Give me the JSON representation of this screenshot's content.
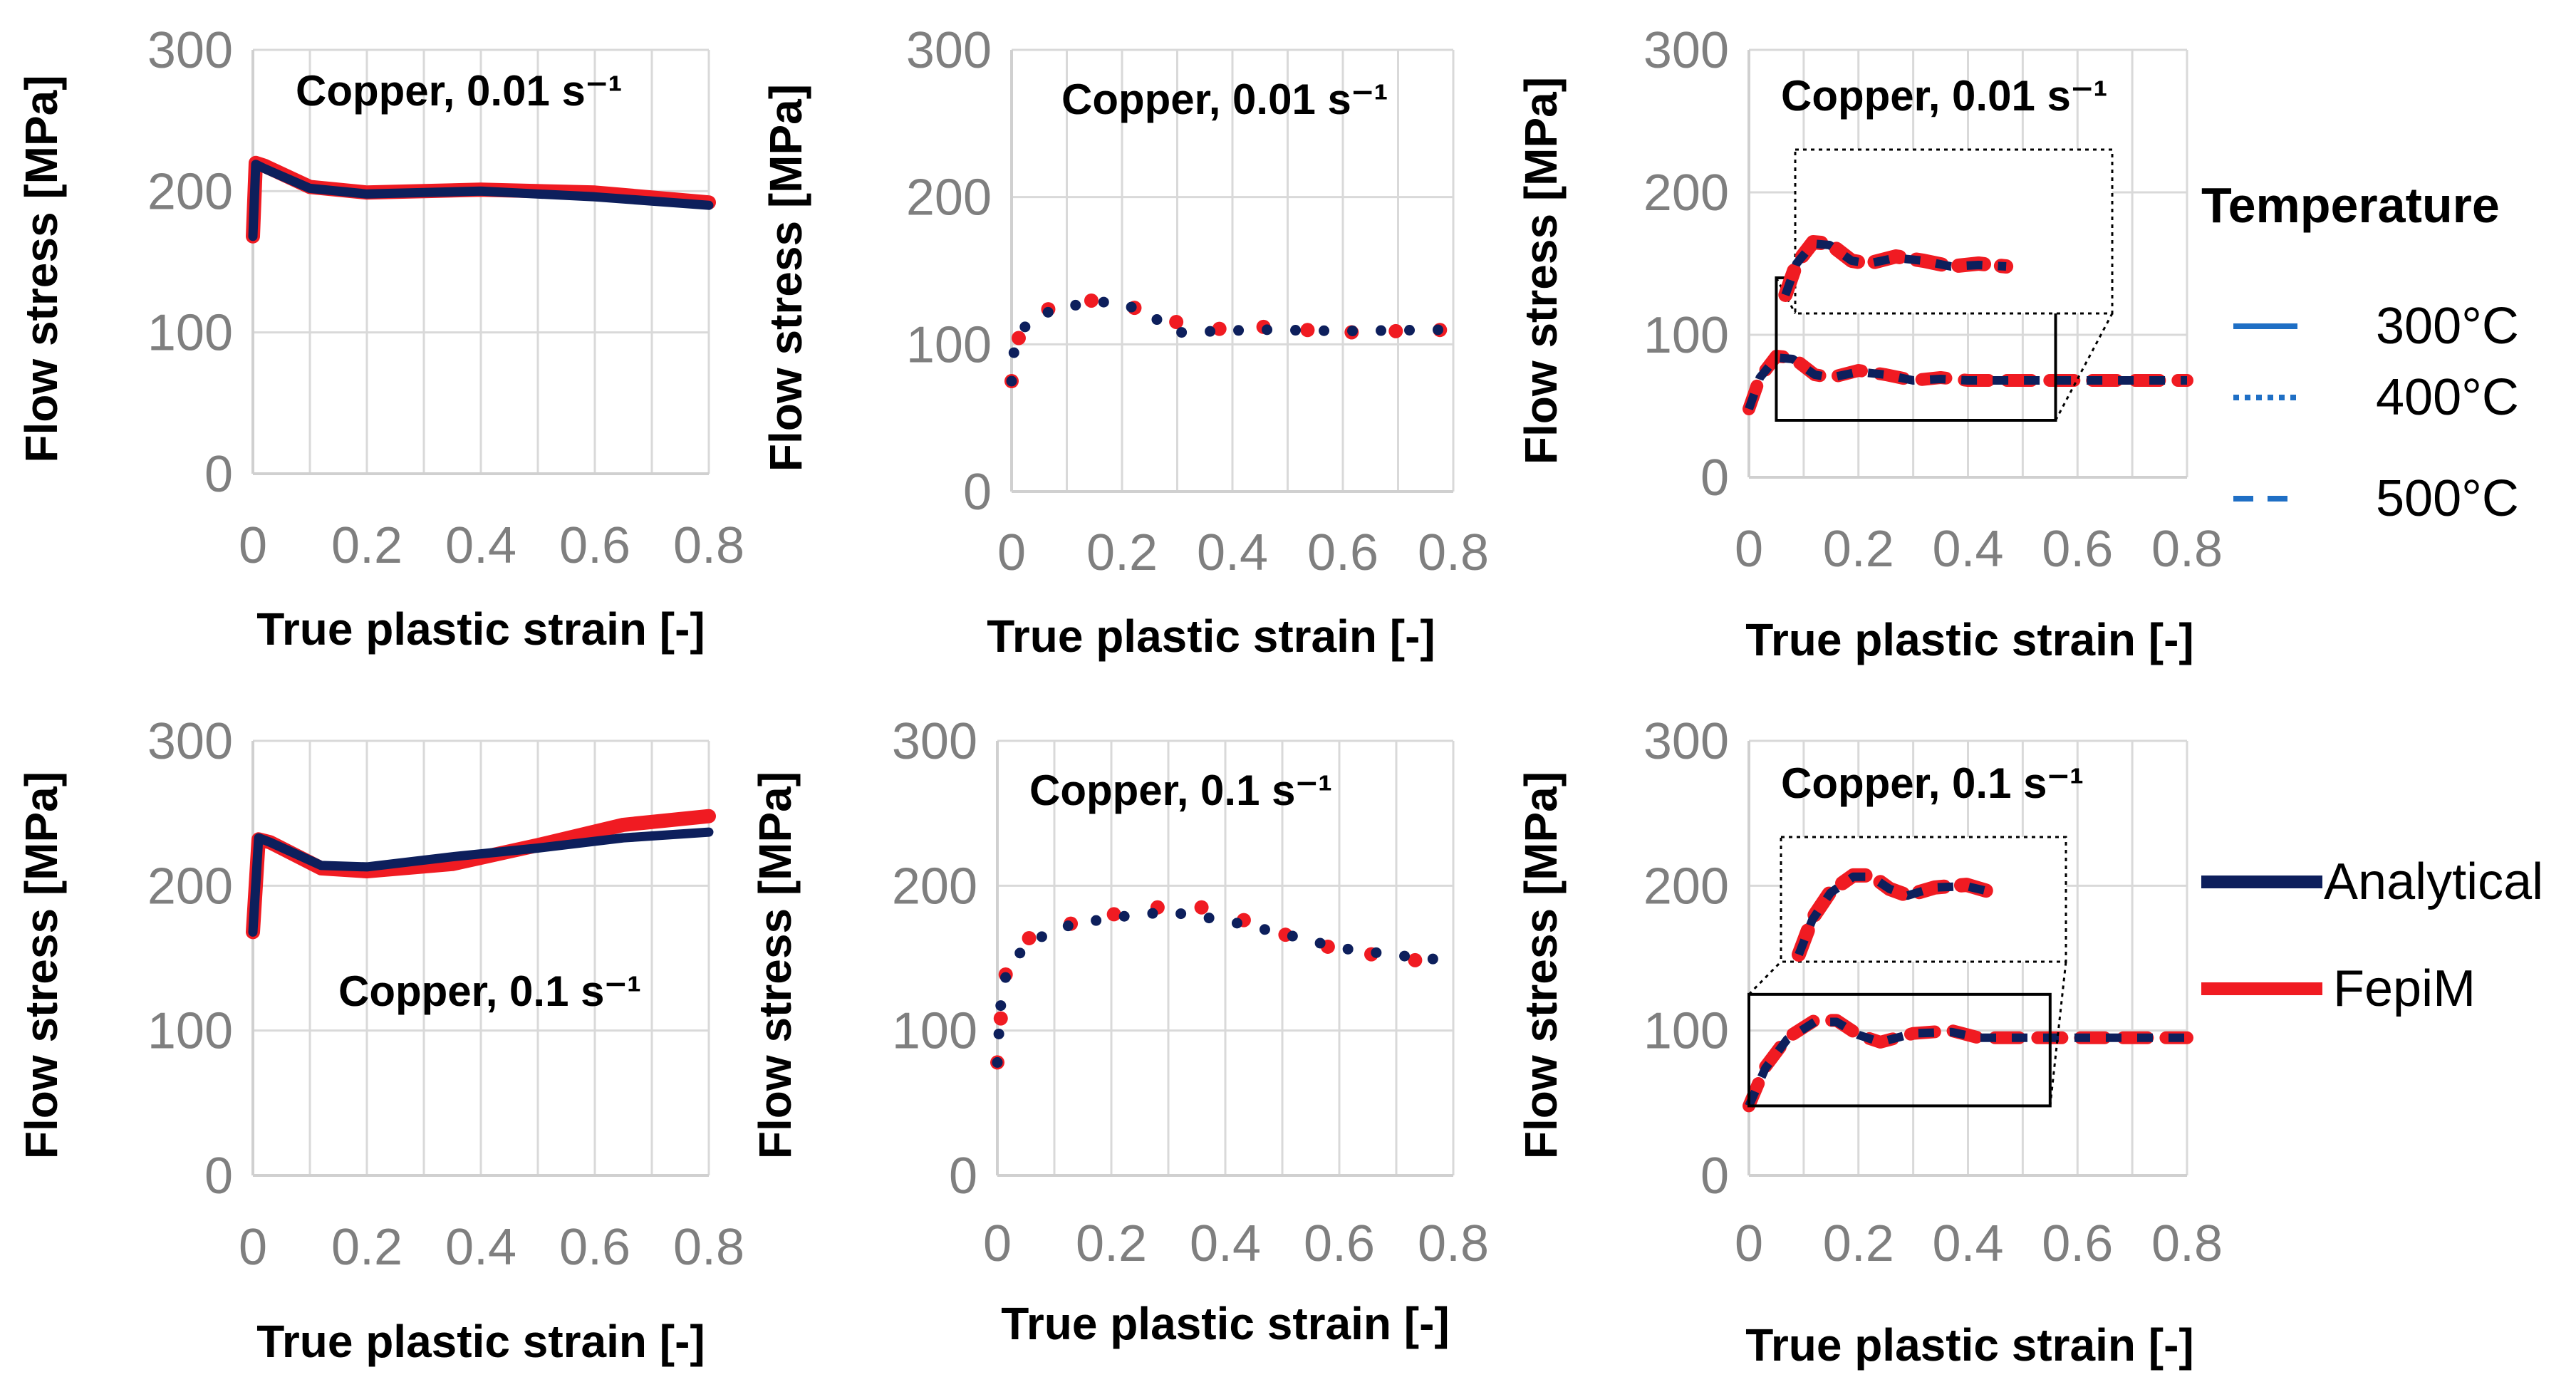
{
  "chart_data": [
    {
      "type": "line",
      "title": "Copper, 0.01 s⁻¹",
      "xlabel": "True plastic strain [-]",
      "ylabel": "Flow stress [MPa]",
      "xlim": [
        0,
        0.8
      ],
      "ylim": [
        0,
        300
      ],
      "xticks": [
        "0",
        "0.2",
        "0.4",
        "0.6",
        "0.8"
      ],
      "yticks": [
        "0",
        "100",
        "200",
        "300"
      ],
      "temperature": "300°C",
      "series": [
        {
          "name": "FepiM",
          "x": [
            0,
            0.005,
            0.02,
            0.1,
            0.2,
            0.4,
            0.6,
            0.8
          ],
          "y": [
            168,
            220,
            218,
            203,
            199,
            201,
            199,
            192
          ]
        },
        {
          "name": "Analytical",
          "x": [
            0,
            0.005,
            0.02,
            0.1,
            0.2,
            0.4,
            0.6,
            0.8
          ],
          "y": [
            168,
            219,
            216,
            202,
            198,
            200,
            196,
            190
          ]
        }
      ]
    },
    {
      "type": "line",
      "title": "Copper, 0.01 s⁻¹",
      "xlabel": "True plastic strain [-]",
      "ylabel": "Flow stress [MPa]",
      "xlim": [
        0,
        0.8
      ],
      "ylim": [
        0,
        300
      ],
      "xticks": [
        "0",
        "0.2",
        "0.4",
        "0.6",
        "0.8"
      ],
      "yticks": [
        "0",
        "100",
        "200",
        "300"
      ],
      "temperature": "400°C",
      "series": [
        {
          "name": "FepiM",
          "x": [
            0,
            0.005,
            0.03,
            0.08,
            0.15,
            0.2,
            0.27,
            0.35,
            0.45,
            0.6,
            0.8
          ],
          "y": [
            75,
            98,
            118,
            126,
            130,
            128,
            118,
            110,
            112,
            108,
            110
          ]
        },
        {
          "name": "Analytical",
          "x": [
            0,
            0.005,
            0.03,
            0.08,
            0.15,
            0.2,
            0.25,
            0.3,
            0.45,
            0.6,
            0.8
          ],
          "y": [
            75,
            98,
            116,
            124,
            129,
            128,
            120,
            108,
            110,
            109,
            110
          ]
        }
      ]
    },
    {
      "type": "line",
      "title": "Copper, 0.01 s⁻¹",
      "xlabel": "True plastic strain [-]",
      "ylabel": "Flow stress [MPa]",
      "xlim": [
        0,
        0.8
      ],
      "ylim": [
        0,
        300
      ],
      "xticks": [
        "0",
        "0.2",
        "0.4",
        "0.6",
        "0.8"
      ],
      "yticks": [
        "0",
        "100",
        "200",
        "300"
      ],
      "temperature": "500°C",
      "inset_zoom": "top",
      "series": [
        {
          "name": "FepiM",
          "x": [
            0,
            0.02,
            0.05,
            0.08,
            0.12,
            0.15,
            0.2,
            0.25,
            0.3,
            0.35,
            0.4,
            0.8
          ],
          "y": [
            48,
            70,
            85,
            84,
            72,
            70,
            75,
            72,
            68,
            70,
            68,
            68
          ]
        },
        {
          "name": "Analytical",
          "x": [
            0,
            0.02,
            0.05,
            0.08,
            0.12,
            0.15,
            0.2,
            0.25,
            0.3,
            0.35,
            0.4,
            0.8
          ],
          "y": [
            48,
            70,
            84,
            83,
            72,
            70,
            74,
            72,
            68,
            69,
            68,
            68
          ]
        }
      ]
    },
    {
      "type": "line",
      "title": "Copper, 0.1 s⁻¹",
      "xlabel": "True plastic strain [-]",
      "ylabel": "Flow stress [MPa]",
      "xlim": [
        0,
        0.8
      ],
      "ylim": [
        0,
        300
      ],
      "xticks": [
        "0",
        "0.2",
        "0.4",
        "0.6",
        "0.8"
      ],
      "yticks": [
        "0",
        "100",
        "200",
        "300"
      ],
      "temperature": "300°C",
      "series": [
        {
          "name": "FepiM",
          "x": [
            0,
            0.01,
            0.03,
            0.12,
            0.2,
            0.35,
            0.5,
            0.65,
            0.8
          ],
          "y": [
            168,
            232,
            230,
            212,
            210,
            215,
            228,
            242,
            248
          ]
        },
        {
          "name": "Analytical",
          "x": [
            0,
            0.01,
            0.03,
            0.12,
            0.2,
            0.35,
            0.5,
            0.65,
            0.8
          ],
          "y": [
            168,
            233,
            230,
            214,
            213,
            220,
            226,
            233,
            237
          ]
        }
      ]
    },
    {
      "type": "line",
      "title": "Copper, 0.1 s⁻¹",
      "xlabel": "True plastic strain [-]",
      "ylabel": "Flow stress [MPa]",
      "xlim": [
        0,
        0.8
      ],
      "ylim": [
        0,
        300
      ],
      "xticks": [
        "0",
        "0.2",
        "0.4",
        "0.6",
        "0.8"
      ],
      "yticks": [
        "0",
        "100",
        "200",
        "300"
      ],
      "temperature": "400°C",
      "series": [
        {
          "name": "FepiM",
          "x": [
            0,
            0.005,
            0.015,
            0.05,
            0.12,
            0.2,
            0.28,
            0.35,
            0.42,
            0.55,
            0.65,
            0.8
          ],
          "y": [
            78,
            105,
            140,
            163,
            173,
            180,
            185,
            186,
            178,
            160,
            153,
            145
          ]
        },
        {
          "name": "Analytical",
          "x": [
            0,
            0.005,
            0.015,
            0.05,
            0.12,
            0.2,
            0.3,
            0.4,
            0.5,
            0.6,
            0.7,
            0.8
          ],
          "y": [
            78,
            115,
            138,
            160,
            172,
            178,
            182,
            176,
            167,
            157,
            152,
            148
          ]
        }
      ]
    },
    {
      "type": "line",
      "title": "Copper, 0.1 s⁻¹",
      "xlabel": "True plastic strain [-]",
      "ylabel": "Flow stress [MPa]",
      "xlim": [
        0,
        0.8
      ],
      "ylim": [
        0,
        300
      ],
      "xticks": [
        "0",
        "0.2",
        "0.4",
        "0.6",
        "0.8"
      ],
      "yticks": [
        "0",
        "100",
        "200",
        "300"
      ],
      "temperature": "500°C",
      "inset_zoom": "top",
      "series": [
        {
          "name": "FepiM",
          "x": [
            0,
            0.03,
            0.07,
            0.12,
            0.16,
            0.2,
            0.24,
            0.3,
            0.37,
            0.42,
            0.8
          ],
          "y": [
            48,
            75,
            95,
            107,
            107,
            97,
            92,
            98,
            100,
            95,
            95
          ]
        },
        {
          "name": "Analytical",
          "x": [
            0,
            0.03,
            0.07,
            0.12,
            0.16,
            0.2,
            0.24,
            0.3,
            0.37,
            0.42,
            0.8
          ],
          "y": [
            48,
            74,
            94,
            106,
            106,
            97,
            92,
            98,
            99,
            95,
            95
          ]
        }
      ]
    }
  ],
  "legend": {
    "temperature_title": "Temperature",
    "temperature_items": [
      {
        "label": "300°C",
        "style": "solid"
      },
      {
        "label": "400°C",
        "style": "dotted"
      },
      {
        "label": "500°C",
        "style": "dashed"
      }
    ],
    "method_items": [
      {
        "label": "Analytical",
        "color": "#0d1f5c"
      },
      {
        "label": "FepiM",
        "color": "#f01b22"
      }
    ],
    "temperature_line_color": "#1f6fc5"
  },
  "colors": {
    "analytical": "#0d1f5c",
    "fepim": "#f01b22",
    "grid": "#d9d9d9",
    "tick": "#7f7f7f"
  }
}
